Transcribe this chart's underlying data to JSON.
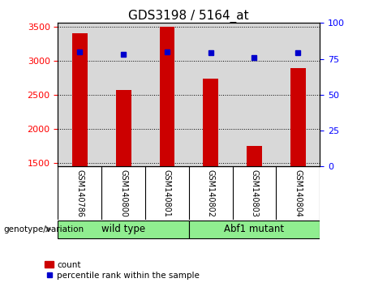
{
  "title": "GDS3198 / 5164_at",
  "samples": [
    "GSM140786",
    "GSM140800",
    "GSM140801",
    "GSM140802",
    "GSM140803",
    "GSM140804"
  ],
  "counts": [
    3400,
    2570,
    3500,
    2730,
    1750,
    2890
  ],
  "percentile_ranks": [
    80,
    78,
    80,
    79,
    76,
    79
  ],
  "ylim_left": [
    1450,
    3550
  ],
  "ylim_right": [
    0,
    100
  ],
  "yticks_left": [
    1500,
    2000,
    2500,
    3000,
    3500
  ],
  "yticks_right": [
    0,
    25,
    50,
    75,
    100
  ],
  "bar_color": "#cc0000",
  "dot_color": "#0000cc",
  "bar_width": 0.35,
  "wild_type_label": "wild type",
  "abf1_mutant_label": "Abf1 mutant",
  "genotype_label": "genotype/variation",
  "legend_count_label": "count",
  "legend_percentile_label": "percentile rank within the sample",
  "plot_bg_color": "#d8d8d8",
  "label_area_bg": "#c8c8c8",
  "wild_type_bg": "#90ee90",
  "abf1_mutant_bg": "#90ee90",
  "title_fontsize": 11,
  "tick_fontsize": 8,
  "label_fontsize": 8,
  "baseline": 1450,
  "n_wild": 3,
  "n_abf": 3
}
